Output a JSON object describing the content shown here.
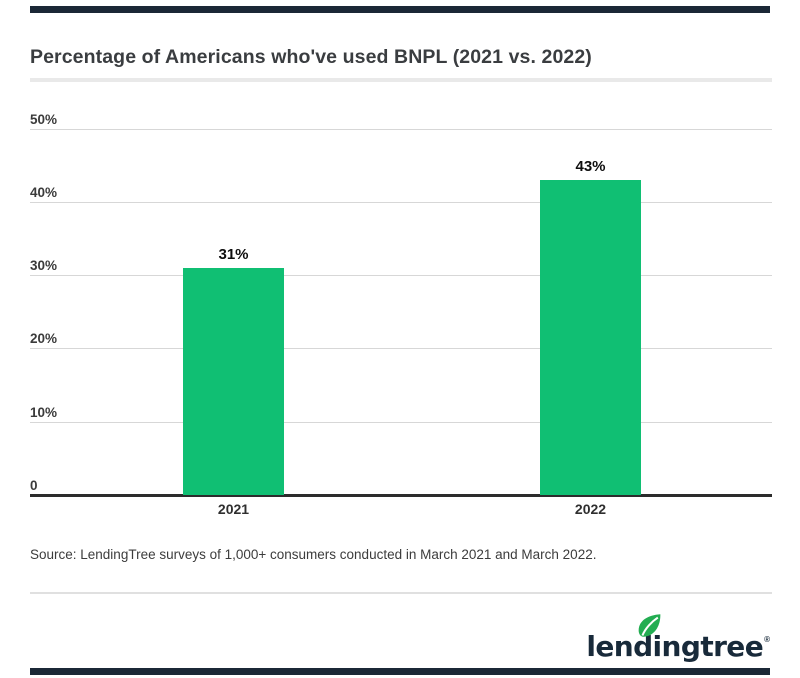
{
  "header": {
    "title": "Percentage of Americans who've used BNPL (2021 vs. 2022)"
  },
  "chart_data": {
    "type": "bar",
    "title": "Percentage of Americans who've used BNPL (2021 vs. 2022)",
    "categories": [
      "2021",
      "2022"
    ],
    "values": [
      31,
      43
    ],
    "value_labels": [
      "31%",
      "43%"
    ],
    "unit": "%",
    "ylim": [
      0,
      50
    ],
    "y_ticks": [
      {
        "label": "50%",
        "value": 50
      },
      {
        "label": "40%",
        "value": 40
      },
      {
        "label": "30%",
        "value": 30
      },
      {
        "label": "20%",
        "value": 20
      },
      {
        "label": "10%",
        "value": 10
      },
      {
        "label": "0",
        "value": 0
      }
    ],
    "grid": "horizontal",
    "legend": "none",
    "bar_color": "#10bf73"
  },
  "source": {
    "text": "Source: LendingTree surveys of 1,000+ consumers conducted in March 2021 and March 2022."
  },
  "footer": {
    "logo_text": "lendingtree",
    "registered_mark": "®"
  },
  "colors": {
    "accent_green": "#10bf73",
    "brand_navy": "#1b2836",
    "leaf_green": "#23ad52",
    "gridline_gray": "#d7d7d7",
    "divider_gray": "#e9e9e9",
    "axis_dark": "#2c2c2c"
  }
}
